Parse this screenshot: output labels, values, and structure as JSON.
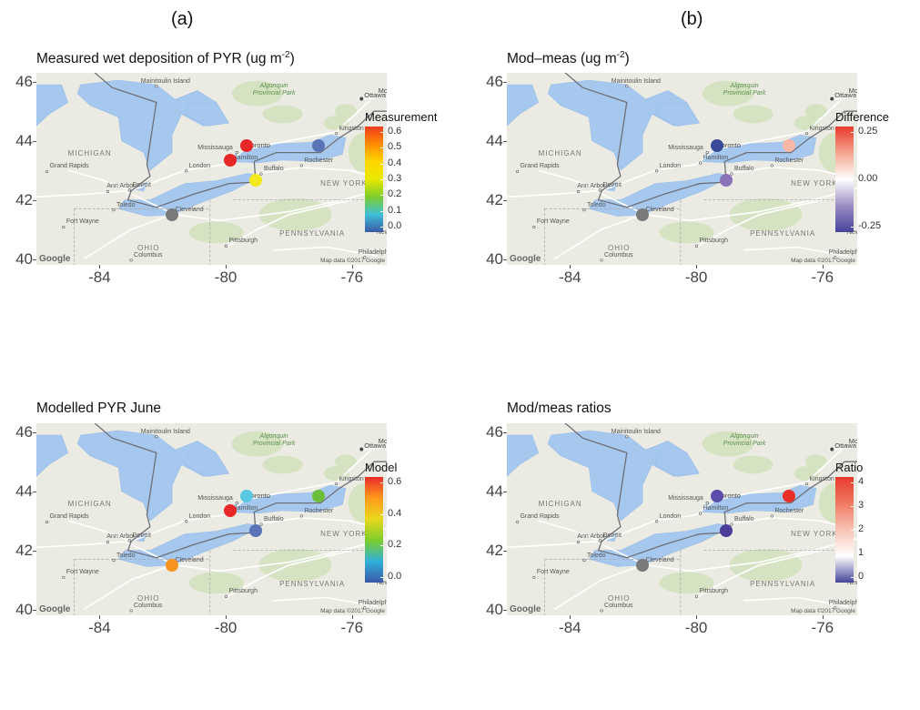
{
  "column_labels": [
    "(a)",
    "(b)"
  ],
  "panels": [
    {
      "title": "Measured wet deposition of PYR (ug m",
      "title_sup": "-2",
      "title_suffix": ")",
      "legend_title": "Measurement",
      "legend_labels": [
        "0.6",
        "0.5",
        "0.4",
        "0.3",
        "0.2",
        "0.1",
        "0.0"
      ],
      "legend_gradient": [
        "#f03b20",
        "#ff8c00",
        "#ffd700",
        "#e8e800",
        "#7ccd2c",
        "#40c0d8",
        "#3a58a8"
      ],
      "points": [
        {
          "name": "Toronto",
          "color": "#e82828"
        },
        {
          "name": "Hamilton",
          "color": "#e82828"
        },
        {
          "name": "Buffalo",
          "color": "#f2e81a"
        },
        {
          "name": "Kingston",
          "color": "#5b74b8"
        },
        {
          "name": "Cleveland",
          "color": "#7a7a7a"
        }
      ]
    },
    {
      "title": "Mod–meas (ug m",
      "title_sup": "-2",
      "title_suffix": ")",
      "legend_title": "Difference",
      "legend_labels": [
        "0.25",
        "0.00",
        "-0.25"
      ],
      "legend_gradient": [
        "#e83a2c",
        "#f4a58f",
        "#ffffff",
        "#9d8cc4",
        "#44449a"
      ],
      "points": [
        {
          "name": "Toronto",
          "color": "#3a4a98"
        },
        {
          "name": "Buffalo",
          "color": "#8a72b8"
        },
        {
          "name": "Kingston",
          "color": "#f8b8a8"
        },
        {
          "name": "Cleveland",
          "color": "#7a7a7a"
        }
      ]
    },
    {
      "title": "Modelled PYR June",
      "title_sup": "",
      "title_suffix": "",
      "legend_title": "Model",
      "legend_labels": [
        "0.6",
        "0.4",
        "0.2",
        "0.0"
      ],
      "legend_gradient": [
        "#e82a2a",
        "#ff9a1c",
        "#e8d81c",
        "#7ccd2c",
        "#30b0d8",
        "#3a58a8"
      ],
      "points": [
        {
          "name": "Toronto",
          "color": "#5ac8e0"
        },
        {
          "name": "Hamilton",
          "color": "#e82828"
        },
        {
          "name": "Buffalo",
          "color": "#5b74b8"
        },
        {
          "name": "Kingston",
          "color": "#6cbe3a"
        },
        {
          "name": "Cleveland",
          "color": "#f6921e"
        }
      ]
    },
    {
      "title": "Mod/meas ratios",
      "title_sup": "",
      "title_suffix": "",
      "legend_title": "Ratio",
      "legend_labels": [
        "4",
        "3",
        "2",
        "1",
        "0"
      ],
      "legend_gradient": [
        "#e83a2c",
        "#f07a64",
        "#f8c4b4",
        "#ffffff",
        "#44449a"
      ],
      "points": [
        {
          "name": "Toronto",
          "color": "#5a4ea8"
        },
        {
          "name": "Buffalo",
          "color": "#4a3e98"
        },
        {
          "name": "Kingston",
          "color": "#e83028"
        },
        {
          "name": "Cleveland",
          "color": "#7a7a7a"
        }
      ]
    }
  ],
  "axes": {
    "y_labels": [
      "46",
      "44",
      "42",
      "40"
    ],
    "x_labels": [
      "-84",
      "-80",
      "-76"
    ]
  },
  "map_labels": {
    "cities": [
      "Ottawa",
      "Montreal",
      "Kingston",
      "Toronto",
      "Mississauga",
      "Hamilton",
      "Rochester",
      "Buffalo",
      "London",
      "Grand Rapids",
      "Detroit",
      "Ann Arbor",
      "Toledo",
      "Cleveland",
      "Fort Wayne",
      "Pittsburgh",
      "Columbus",
      "Albany",
      "New York",
      "Philadelphia",
      "Mainitoulin Island"
    ],
    "states": [
      "MICHIGAN",
      "NEW YORK",
      "PENNSYLVANIA",
      "OHIO"
    ],
    "park": "Algonquin Provincial Park",
    "google": "Google",
    "mapdata": "Map data ©2017 Google"
  }
}
